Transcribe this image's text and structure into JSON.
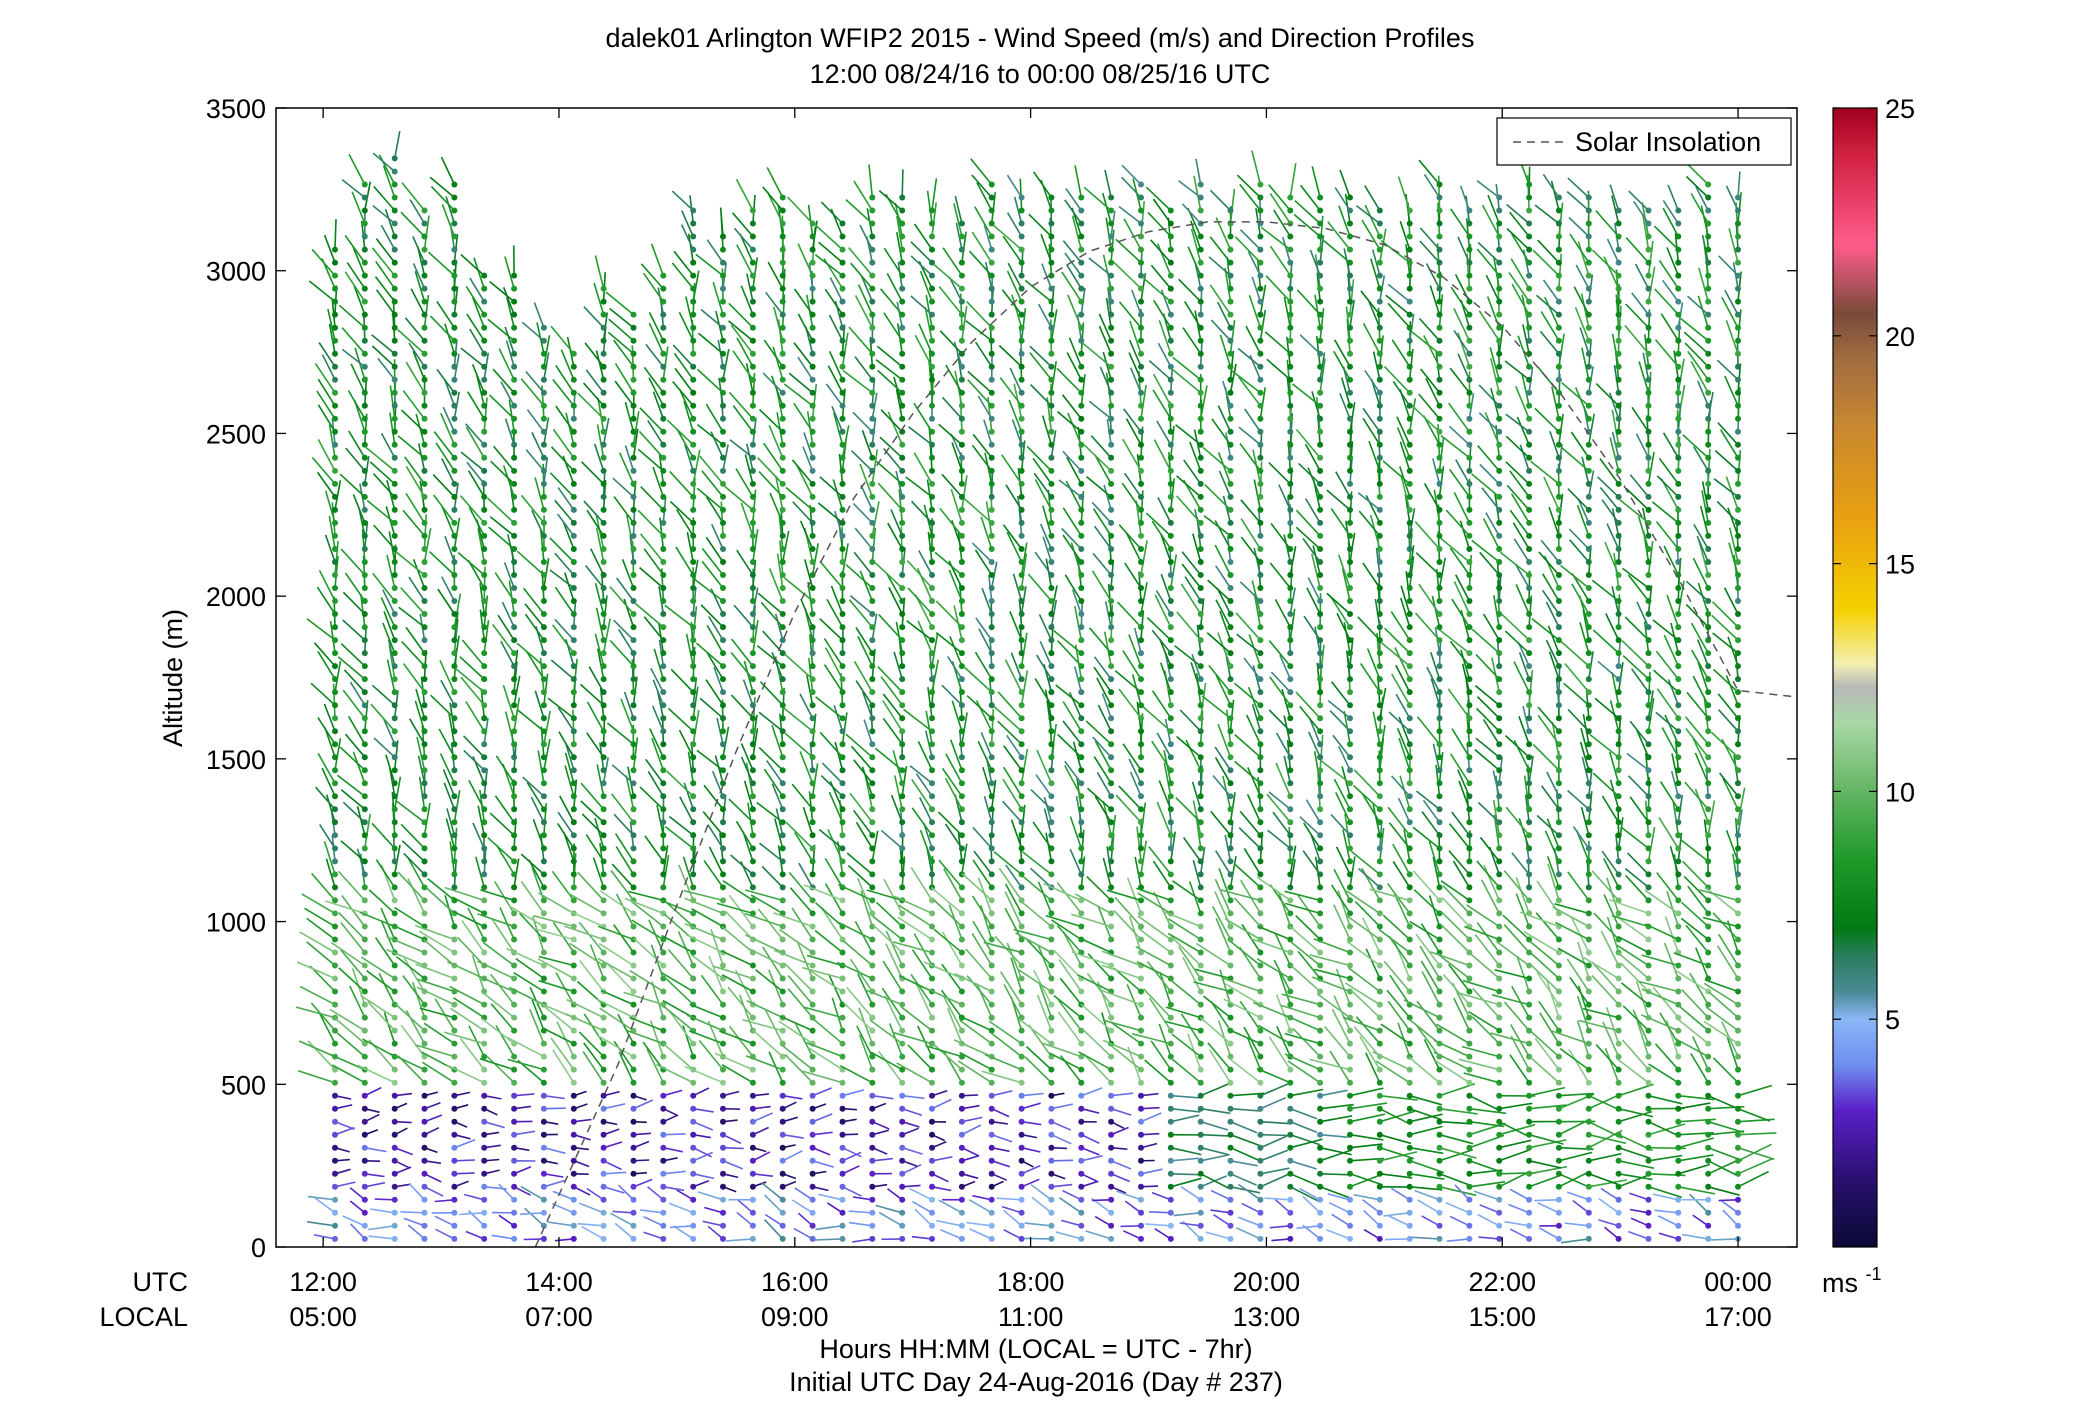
{
  "chart_data": {
    "type": "scatter",
    "title": "dalek01 Arlington WFIP2 2015 - Wind Speed (m/s) and Direction Profiles",
    "subtitle": "12:00 08/24/16 to 00:00 08/25/16  UTC",
    "ylabel": "Altitude (m)",
    "xlabel": "Hours HH:MM  (LOCAL = UTC - 7hr)",
    "xlabel2": "Initial UTC Day 24-Aug-2016 (Day # 237)",
    "xrow_labels": [
      "UTC",
      "LOCAL"
    ],
    "ylim": [
      0,
      3500
    ],
    "yticks": [
      0,
      500,
      1000,
      1500,
      2000,
      2500,
      3000,
      3500
    ],
    "xlim_hours": [
      11.6,
      24.5
    ],
    "xticks_hours": [
      12,
      14,
      16,
      18,
      20,
      22,
      24
    ],
    "xtick_labels_utc": [
      "12:00",
      "14:00",
      "16:00",
      "18:00",
      "20:00",
      "22:00",
      "00:00"
    ],
    "xtick_labels_local": [
      "05:00",
      "07:00",
      "09:00",
      "11:00",
      "13:00",
      "15:00",
      "17:00"
    ],
    "legend": {
      "label": "Solar Insolation",
      "placement": "top-right",
      "line_style": "dashed",
      "color": "#555555"
    },
    "solar_insolation": {
      "x_hours": [
        13.8,
        14.5,
        15.0,
        15.5,
        16.0,
        16.5,
        17.0,
        17.5,
        18.0,
        18.5,
        19.0,
        19.5,
        20.0,
        20.5,
        21.0,
        21.5,
        22.0,
        22.5,
        23.0,
        23.5,
        24.0,
        24.5
      ],
      "altitude_m": [
        0,
        560,
        1050,
        1520,
        1950,
        2300,
        2560,
        2780,
        2950,
        3060,
        3120,
        3150,
        3150,
        3130,
        3080,
        2980,
        2830,
        2620,
        2360,
        2050,
        1710,
        1690
      ]
    },
    "colorbar": {
      "label": "ms",
      "label_exponent": "-1",
      "range": [
        0,
        25
      ],
      "ticks": [
        5,
        10,
        15,
        20,
        25
      ],
      "stops": [
        {
          "v": 0,
          "c": "#0a0a35"
        },
        {
          "v": 1.5,
          "c": "#2a1070"
        },
        {
          "v": 3,
          "c": "#5a20c8"
        },
        {
          "v": 4,
          "c": "#6e8ff0"
        },
        {
          "v": 5,
          "c": "#8ab7f5"
        },
        {
          "v": 5.6,
          "c": "#4a8a96"
        },
        {
          "v": 6.4,
          "c": "#2a7d5c"
        },
        {
          "v": 7.0,
          "c": "#007a12"
        },
        {
          "v": 8.5,
          "c": "#1f9a2a"
        },
        {
          "v": 10,
          "c": "#64b564"
        },
        {
          "v": 11.5,
          "c": "#a8d8a4"
        },
        {
          "v": 12.3,
          "c": "#b8b8b8"
        },
        {
          "v": 12.8,
          "c": "#f3f0b0"
        },
        {
          "v": 14,
          "c": "#f5d000"
        },
        {
          "v": 16,
          "c": "#e9a010"
        },
        {
          "v": 18,
          "c": "#c98830"
        },
        {
          "v": 19.5,
          "c": "#a06c40"
        },
        {
          "v": 20.5,
          "c": "#7a4a3a"
        },
        {
          "v": 22,
          "c": "#ff5c8c"
        },
        {
          "v": 24,
          "c": "#d02040"
        },
        {
          "v": 25,
          "c": "#a0001c"
        }
      ]
    },
    "profiles": {
      "time_start_hours": 12.1,
      "time_end_hours": 24.0,
      "count": 48,
      "altitude_min_m": 25,
      "altitude_step_m": 40,
      "altitude_max_m": 3250,
      "missing_time_windows_hours": [
        [
          12.1,
          14.7,
          2900,
          3500
        ]
      ],
      "note_regime": [
        {
          "alt_below_m": 150,
          "speed_ms": 4.2,
          "direction_deg": 250
        },
        {
          "alt_below_m": 500,
          "speed_ms": 2.5,
          "direction_deg": 90
        },
        {
          "alt_below_m": 1100,
          "speed_ms": 9.5,
          "direction_deg": 225
        },
        {
          "alt_below_m": 3500,
          "speed_ms": 7.5,
          "direction_deg": 200
        }
      ]
    }
  }
}
